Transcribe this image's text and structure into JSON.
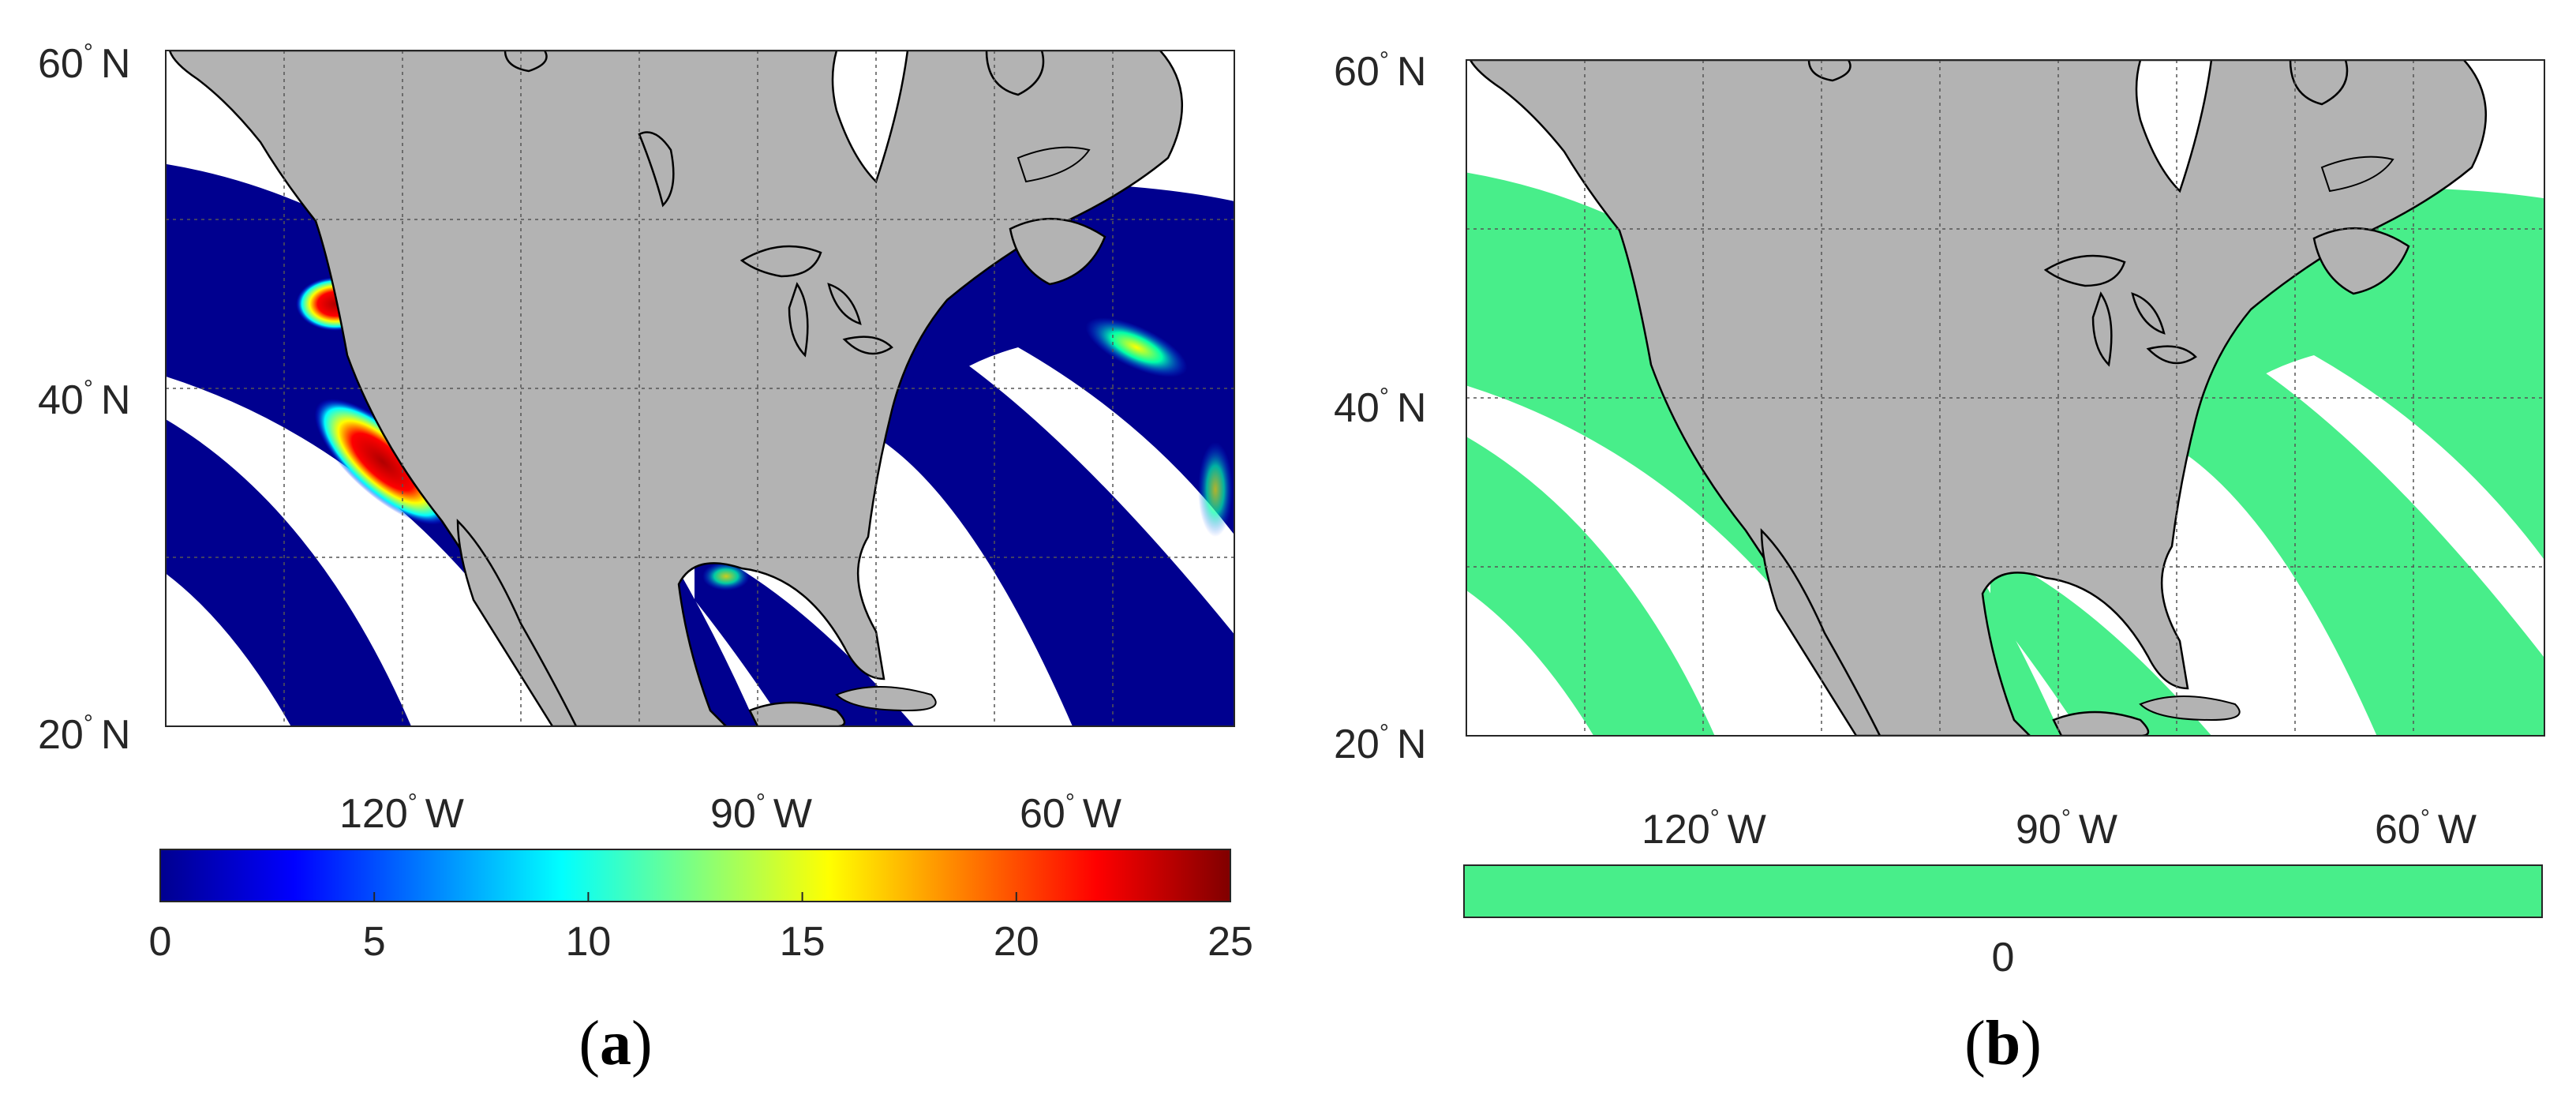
{
  "panels": [
    {
      "id": "a",
      "caption_open": "(",
      "caption_letter": "a",
      "caption_close": ")",
      "lat_labels": [
        {
          "value": "60",
          "deg": "°",
          "hemi": "N"
        },
        {
          "value": "40",
          "deg": "°",
          "hemi": "N"
        },
        {
          "value": "20",
          "deg": "°",
          "hemi": "N"
        }
      ],
      "lon_labels": [
        {
          "value": "120",
          "deg": "°",
          "hemi": "W"
        },
        {
          "value": "90",
          "deg": "°",
          "hemi": "W"
        },
        {
          "value": "60",
          "deg": "°",
          "hemi": "W"
        }
      ],
      "colorbar": {
        "type": "jet",
        "min": 0,
        "max": 25,
        "ticks": [
          "0",
          "5",
          "10",
          "15",
          "20",
          "25"
        ]
      }
    },
    {
      "id": "b",
      "caption_open": "(",
      "caption_letter": "b",
      "caption_close": ")",
      "lat_labels": [
        {
          "value": "60",
          "deg": "°",
          "hemi": "N"
        },
        {
          "value": "40",
          "deg": "°",
          "hemi": "N"
        },
        {
          "value": "20",
          "deg": "°",
          "hemi": "N"
        }
      ],
      "lon_labels": [
        {
          "value": "120",
          "deg": "°",
          "hemi": "W"
        },
        {
          "value": "90",
          "deg": "°",
          "hemi": "W"
        },
        {
          "value": "60",
          "deg": "°",
          "hemi": "W"
        }
      ],
      "colorbar": {
        "type": "uniform",
        "color": "#48ee8a",
        "ticks": [
          "0"
        ]
      }
    }
  ],
  "colors": {
    "land": "#b3b3b3",
    "coastline": "#000000",
    "swath_a": "#00008f",
    "swath_b": "#48ee8a",
    "grid": "#555555"
  },
  "map_extent": {
    "lat_range_deg": [
      20,
      60
    ],
    "lon_range_deg": [
      -140,
      -50
    ]
  }
}
